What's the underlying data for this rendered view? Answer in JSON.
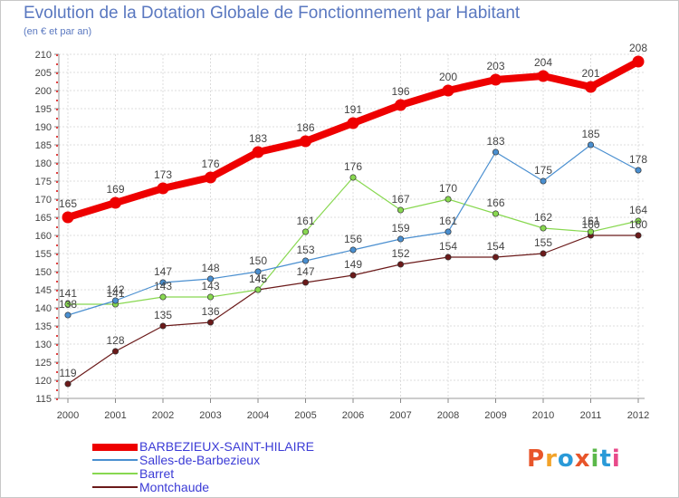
{
  "title": "Evolution de la Dotation Globale de Fonctionnement par Habitant",
  "subtitle": "(en € et par an)",
  "logo": {
    "text": "Proxiti",
    "colors": [
      "#e8552a",
      "#f2a32a",
      "#2a9ad8",
      "#e8552a",
      "#5bb84a",
      "#2a9ad8",
      "#e84a8a"
    ]
  },
  "chart_data": {
    "type": "line",
    "title": "Evolution de la Dotation Globale de Fonctionnement par Habitant",
    "subtitle": "(en € et par an)",
    "xlabel": "",
    "ylabel": "",
    "x": [
      "2000",
      "2001",
      "2002",
      "2003",
      "2004",
      "2005",
      "2006",
      "2007",
      "2008",
      "2009",
      "2010",
      "2011",
      "2012"
    ],
    "ylim": [
      115,
      210
    ],
    "yticks": [
      115,
      120,
      125,
      130,
      135,
      140,
      145,
      150,
      155,
      160,
      165,
      170,
      175,
      180,
      185,
      190,
      195,
      200,
      205,
      210
    ],
    "grid": true,
    "legend_position": "bottom-left",
    "series": [
      {
        "name": "BARBEZIEUX-SAINT-HILAIRE",
        "color": "#ee0000",
        "values": [
          165,
          169,
          173,
          176,
          183,
          186,
          191,
          196,
          200,
          203,
          204,
          201,
          208
        ],
        "labels": [
          "165",
          "169",
          "173",
          "176",
          "183",
          "186",
          "191",
          "196",
          "200",
          "203",
          "204",
          "201",
          "208"
        ]
      },
      {
        "name": "Salles-de-Barbezieux",
        "color": "#4a8fd0",
        "values": [
          138,
          142,
          147,
          148,
          150,
          153,
          156,
          159,
          161,
          183,
          175,
          185,
          178
        ],
        "labels": [
          "138",
          "142",
          "147",
          "148",
          "150",
          "153",
          "156",
          "159",
          "161",
          "183",
          "175",
          "185",
          "178"
        ]
      },
      {
        "name": "Barret",
        "color": "#88d850",
        "values": [
          141,
          141,
          143,
          143,
          145,
          161,
          176,
          167,
          170,
          166,
          162,
          161,
          164
        ],
        "labels": [
          "141",
          "141",
          "143",
          "143",
          "145",
          "161",
          "176",
          "167",
          "170",
          "166",
          "162",
          "161",
          "164"
        ]
      },
      {
        "name": "Montchaude",
        "color": "#6b1a1a",
        "values": [
          119,
          128,
          135,
          136,
          145,
          147,
          149,
          152,
          154,
          154,
          155,
          160,
          160
        ],
        "labels": [
          "119",
          "128",
          "135",
          "136",
          "145",
          "147",
          "149",
          "152",
          "154",
          "154",
          "155",
          "160",
          "160"
        ]
      }
    ]
  }
}
